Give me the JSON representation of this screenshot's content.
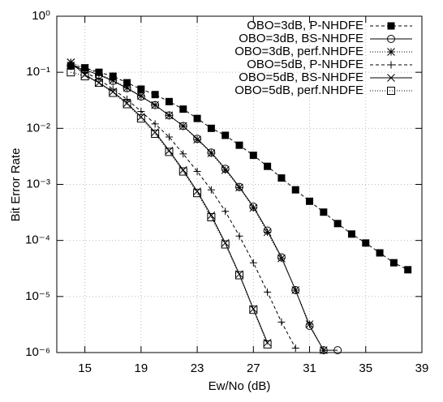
{
  "chart_data": {
    "type": "line",
    "xlabel": "Ew/No (dB)",
    "ylabel": "Bit Error Rate",
    "xlim": [
      13,
      39
    ],
    "xticks": [
      15,
      19,
      23,
      27,
      31,
      35,
      39
    ],
    "ylim": [
      1e-06,
      1
    ],
    "log_y": true,
    "yticks": [
      {
        "value": 1,
        "label": "10⁰"
      },
      {
        "value": 0.1,
        "label": "10⁻¹"
      },
      {
        "value": 0.01,
        "label": "10⁻²"
      },
      {
        "value": 0.001,
        "label": "10⁻³"
      },
      {
        "value": 0.0001,
        "label": "10⁻⁴"
      },
      {
        "value": 1e-05,
        "label": "10⁻⁵"
      },
      {
        "value": 1e-06,
        "label": "10⁻⁶"
      }
    ],
    "grid": true,
    "legend": "upper right",
    "series": [
      {
        "name": "OBO=3dB, P-NHDFE",
        "color": "#000000",
        "line_style": "dashed",
        "marker": "filled-square",
        "x": [
          14,
          15,
          16,
          17,
          18,
          19,
          20,
          21,
          22,
          23,
          24,
          25,
          26,
          27,
          28,
          29,
          30,
          31,
          32,
          33,
          34,
          35,
          36,
          37,
          38
        ],
        "values": [
          0.13,
          0.12,
          0.1,
          0.085,
          0.065,
          0.05,
          0.04,
          0.03,
          0.022,
          0.015,
          0.01,
          0.0075,
          0.005,
          0.0033,
          0.0021,
          0.0013,
          0.0008,
          0.0005,
          0.00032,
          0.0002,
          0.00013,
          9e-05,
          6e-05,
          4e-05,
          3e-05
        ]
      },
      {
        "name": "OBO=3dB, BS-NHDFE",
        "color": "#000000",
        "line_style": "solid",
        "marker": "circle",
        "x": [
          14,
          15,
          16,
          17,
          18,
          19,
          20,
          21,
          22,
          23,
          24,
          25,
          26,
          27,
          28,
          29,
          30,
          31,
          32,
          33
        ],
        "values": [
          0.13,
          0.11,
          0.09,
          0.07,
          0.052,
          0.037,
          0.026,
          0.017,
          0.011,
          0.0065,
          0.0037,
          0.0019,
          0.0009,
          0.0004,
          0.00015,
          5e-05,
          1.3e-05,
          3e-06,
          1.1e-06,
          1.1e-06
        ]
      },
      {
        "name": "OBO=3dB, perf.NHDFE",
        "color": "#000000",
        "line_style": "dotted",
        "marker": "asterisk",
        "x": [
          14,
          15,
          16,
          17,
          18,
          19,
          20,
          21,
          22,
          23,
          24,
          25,
          26,
          27,
          28,
          29,
          30,
          31,
          32
        ],
        "values": [
          0.15,
          0.12,
          0.095,
          0.072,
          0.053,
          0.038,
          0.026,
          0.017,
          0.011,
          0.0063,
          0.0036,
          0.0018,
          0.00088,
          0.00038,
          0.00014,
          4.8e-05,
          1.3e-05,
          3.2e-06,
          1.1e-06
        ]
      },
      {
        "name": "OBO=5dB, P-NHDFE",
        "color": "#000000",
        "line_style": "dashed",
        "marker": "plus",
        "x": [
          14,
          15,
          16,
          17,
          18,
          19,
          20,
          21,
          22,
          23,
          24,
          25,
          26,
          27,
          28,
          29,
          30
        ],
        "values": [
          0.15,
          0.1,
          0.075,
          0.05,
          0.033,
          0.02,
          0.012,
          0.007,
          0.0035,
          0.0017,
          0.0008,
          0.00033,
          0.00012,
          4e-05,
          1.2e-05,
          3.5e-06,
          1.2e-06
        ]
      },
      {
        "name": "OBO=5dB, BS-NHDFE",
        "color": "#000000",
        "line_style": "solid",
        "marker": "cross",
        "x": [
          14,
          15,
          16,
          17,
          18,
          19,
          20,
          21,
          22,
          23,
          24,
          25,
          26,
          27,
          28
        ],
        "values": [
          0.15,
          0.09,
          0.065,
          0.045,
          0.028,
          0.016,
          0.0085,
          0.004,
          0.0018,
          0.00075,
          0.00028,
          9e-05,
          2.5e-05,
          6e-06,
          1.5e-06
        ]
      },
      {
        "name": "OBO=5dB, perf.NHDFE",
        "color": "#000000",
        "line_style": "dotted",
        "marker": "square",
        "x": [
          14,
          15,
          16,
          17,
          18,
          19,
          20,
          21,
          22,
          23,
          24,
          25,
          26,
          27,
          28
        ],
        "values": [
          0.1,
          0.085,
          0.065,
          0.043,
          0.027,
          0.015,
          0.008,
          0.0038,
          0.0017,
          0.0007,
          0.00026,
          8.5e-05,
          2.4e-05,
          5.8e-06,
          1.4e-06
        ]
      }
    ]
  }
}
